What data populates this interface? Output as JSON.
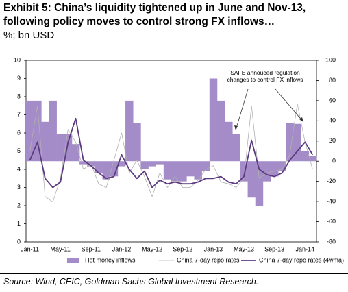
{
  "chart_data": {
    "type": "bar_line",
    "title": "Exhibit 5: China’s liquidity tightened up in June and Nov-13, following policy moves to control strong FX inflows…",
    "subtitle": "%; bn USD",
    "annotation": "SAFE annouced regulation changes to control FX inflows",
    "source": "Source: Wind, CEIC, Goldman Sachs Global Investment Research.",
    "categories": [
      "Jan-11",
      null,
      null,
      null,
      "May-11",
      null,
      null,
      null,
      "Sep-11",
      null,
      null,
      null,
      "Jan-12",
      null,
      null,
      null,
      "May-12",
      null,
      null,
      null,
      "Sep-12",
      null,
      null,
      null,
      "Jan-13",
      null,
      null,
      null,
      "May-13",
      null,
      null,
      null,
      "Sep-13",
      null,
      null,
      null,
      "Jan-14",
      null
    ],
    "series": [
      {
        "name": "Hot money inflows",
        "color": "#a48cc8",
        "axis": "y2",
        "kind": "bar",
        "values": [
          60,
          60,
          39,
          60,
          27,
          27,
          17,
          -3,
          -5,
          -12,
          -18,
          -15,
          -5,
          60,
          38,
          -8,
          -5,
          -3,
          -18,
          -20,
          -20,
          -15,
          -18,
          -10,
          82,
          60,
          39,
          27,
          -20,
          -36,
          -44,
          -20,
          -15,
          -10,
          38,
          37,
          10,
          5
        ]
      },
      {
        "name": "China 7-day repo rates",
        "color": "#b0b0b0",
        "axis": "y",
        "kind": "thin",
        "values": [
          5.0,
          7.5,
          2.5,
          2.2,
          3.5,
          6.2,
          5.5,
          4.0,
          4.3,
          3.2,
          3.0,
          4.5,
          6.0,
          3.8,
          4.5,
          3.6,
          2.5,
          3.8,
          3.0,
          3.6,
          3.0,
          3.0,
          3.4,
          4.0,
          4.2,
          3.3,
          3.2,
          3.0,
          3.5,
          7.5,
          3.5,
          3.8,
          3.9,
          4.0,
          4.8,
          7.6,
          5.5,
          4.0
        ]
      },
      {
        "name": "China 7-day repo rates (4wma)",
        "color": "#5b3a80",
        "axis": "y",
        "kind": "thick",
        "values": [
          4.5,
          5.5,
          3.5,
          3.0,
          3.3,
          5.5,
          6.8,
          4.5,
          4.2,
          3.8,
          3.5,
          3.6,
          4.8,
          4.0,
          3.5,
          3.9,
          3.0,
          3.4,
          3.2,
          3.3,
          3.2,
          3.2,
          3.3,
          3.5,
          3.5,
          3.6,
          3.3,
          3.2,
          3.6,
          5.6,
          4.0,
          3.7,
          3.6,
          3.8,
          4.5,
          5.0,
          5.5,
          4.8
        ]
      }
    ],
    "ylim": [
      0,
      10
    ],
    "yticks": [
      0,
      1,
      2,
      3,
      4,
      5,
      6,
      7,
      8,
      9,
      10
    ],
    "y2lim": [
      -80,
      100
    ],
    "y2ticks": [
      -80,
      -60,
      -40,
      -20,
      0,
      20,
      40,
      60,
      80,
      100
    ],
    "legend": "bottom"
  }
}
